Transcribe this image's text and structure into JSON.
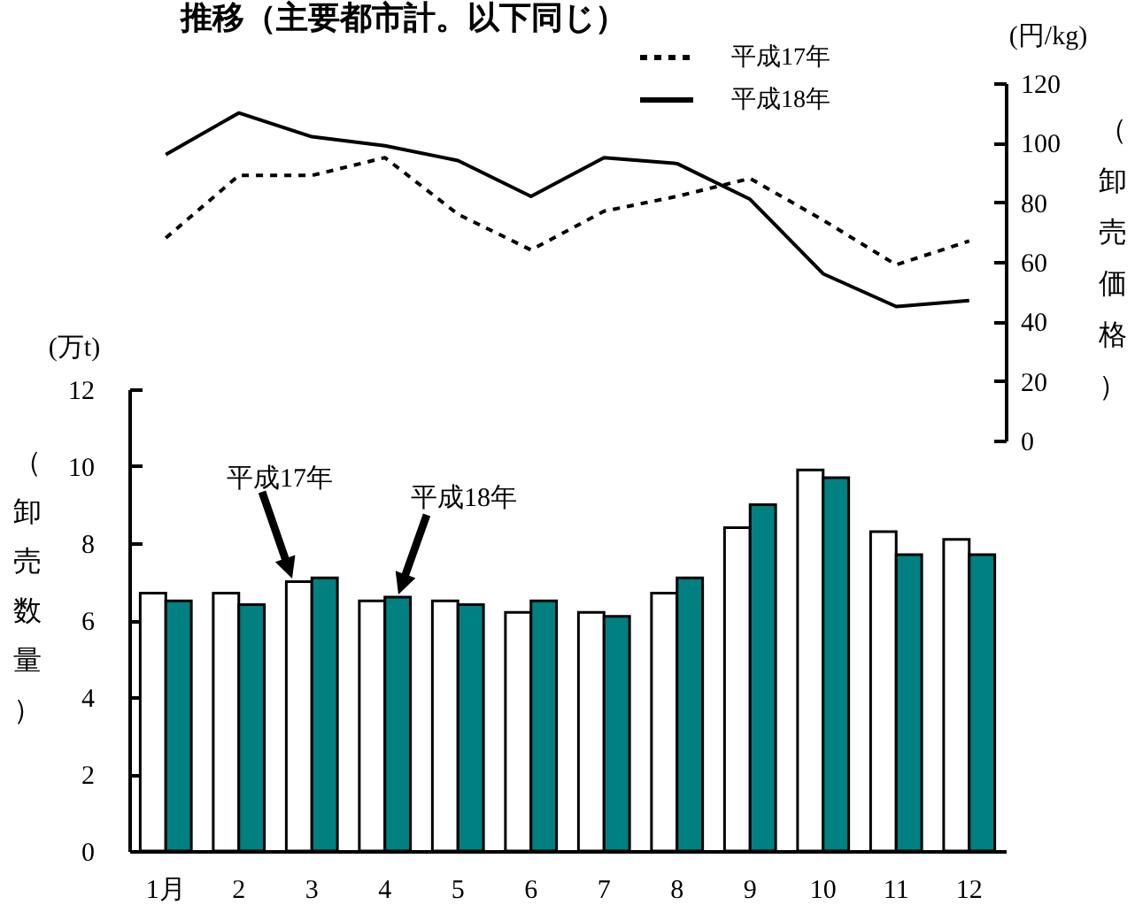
{
  "chart_data": [
    {
      "type": "line",
      "title": "推移（主要都市計。以下同じ）",
      "ylabel": "（卸売価格）",
      "categories": [
        null,
        null,
        null,
        null,
        null,
        null,
        null,
        null,
        null,
        null,
        null,
        null
      ],
      "tick_labels": "y",
      "series": [
        {
          "name": "平成17年",
          "color": "#000000",
          "line_style": "dashed",
          "values": [
            68,
            89,
            89,
            95,
            76,
            64,
            77,
            82,
            88,
            74,
            59,
            67
          ]
        },
        {
          "name": "平成18年",
          "color": "#000000",
          "line_style": "solid",
          "values": [
            96,
            110,
            102,
            99,
            94,
            82,
            95,
            93,
            81,
            56,
            45,
            47
          ]
        }
      ],
      "ylim": [
        0,
        120
      ],
      "yticks": [
        0,
        20,
        40,
        60,
        80,
        100,
        120
      ],
      "legend": "top right",
      "annotations": [
        "(円/kg)"
      ]
    },
    {
      "type": "bar",
      "ylabel": "（卸売数量）",
      "categories": [
        "1月",
        "2",
        "3",
        "4",
        "5",
        "6",
        "7",
        "8",
        "9",
        "10",
        "11",
        "12"
      ],
      "series": [
        {
          "color": "#ffffff",
          "values": [
            6.7,
            6.7,
            7.0,
            6.5,
            6.5,
            6.2,
            6.2,
            6.7,
            8.4,
            9.9,
            8.3,
            8.1
          ]
        },
        {
          "color": "#008080",
          "values": [
            6.5,
            6.4,
            7.1,
            6.6,
            6.4,
            6.5,
            6.1,
            7.1,
            9.0,
            9.7,
            7.7,
            7.7
          ]
        }
      ],
      "ylim": [
        0,
        12
      ],
      "yticks": [
        0,
        2,
        4,
        6,
        8,
        10,
        12
      ],
      "annotations": [
        "(万t)",
        "平成17年",
        "平成18年"
      ]
    }
  ]
}
